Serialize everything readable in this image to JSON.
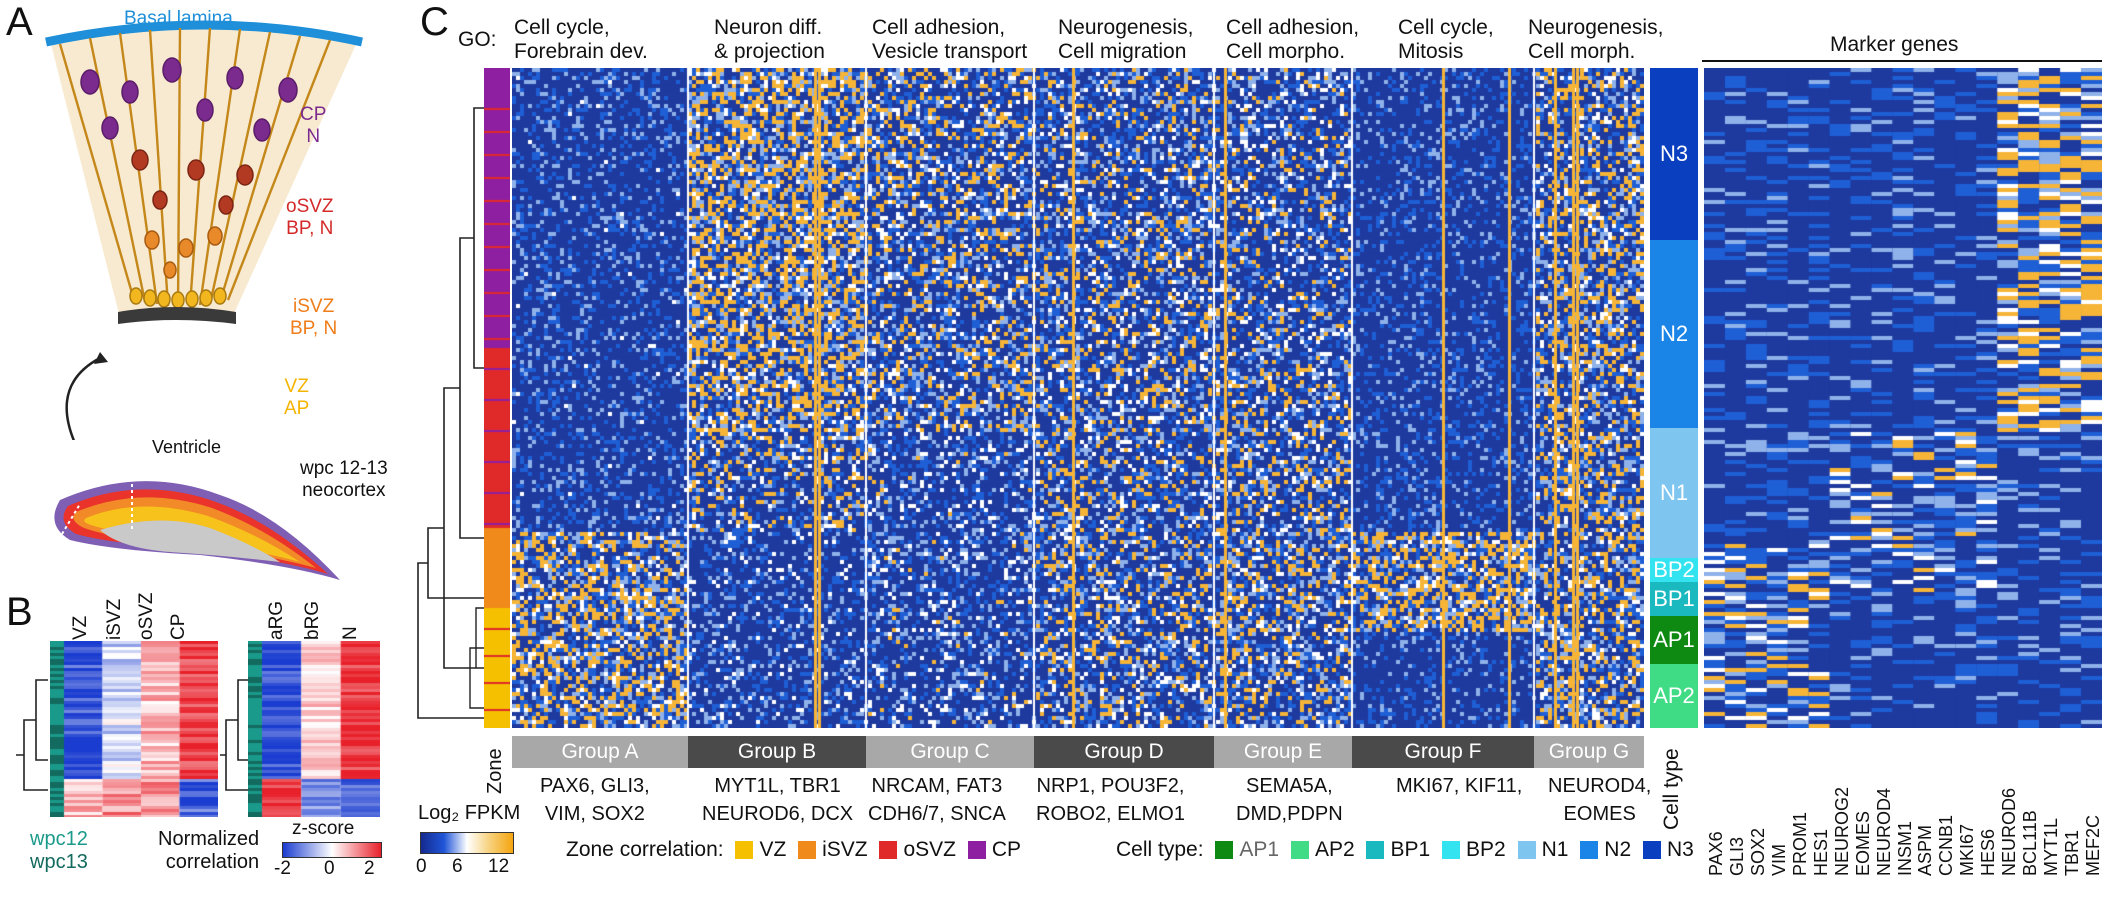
{
  "panels": {
    "a": "A",
    "b": "B",
    "c": "C"
  },
  "panel_a": {
    "basal_lamina": "Basal lamina",
    "zones": [
      {
        "label": "CP\nN",
        "color": "#7b2a8e"
      },
      {
        "label": "oSVZ\nBP, N",
        "color": "#d42a2a"
      },
      {
        "label": "iSVZ\nBP, N",
        "color": "#ef7d1a"
      },
      {
        "label": "VZ\nAP",
        "color": "#f5b400"
      }
    ],
    "ventricle": "Ventricle",
    "stage": "wpc 12-13\nneocortex"
  },
  "panel_b": {
    "columns_left": [
      "VZ",
      "iSVZ",
      "oSVZ",
      "CP"
    ],
    "columns_right": [
      "aRG",
      "bRG",
      "N"
    ],
    "legend_wpc12": "wpc12",
    "legend_wpc13": "wpc13",
    "normalized_correlation": "Normalized\ncorrelation",
    "zscore_title": "z-score",
    "zscore_ticks": [
      "-2",
      "0",
      "2"
    ]
  },
  "panel_c": {
    "go_prefix": "GO:",
    "go_terms": [
      "Cell cycle,\nForebrain dev.",
      "Neuron diff.\n& projection",
      "Cell adhesion,\nVesicle transport",
      "Neurogenesis,\nCell migration",
      "Cell adhesion,\nCell morpho.",
      "Cell cycle,\nMitosis",
      "Neurogenesis,\nCell morph."
    ],
    "groups": [
      {
        "label": "Group A",
        "genes": "PAX6, GLI3,\nVIM, SOX2"
      },
      {
        "label": "Group B",
        "genes": "MYT1L, TBR1\nNEUROD6, DCX"
      },
      {
        "label": "Group C",
        "genes": "NRCAM, FAT3\nCDH6/7, SNCA"
      },
      {
        "label": "Group D",
        "genes": "NRP1, POU3F2,\nROBO2, ELMO1"
      },
      {
        "label": "Group E",
        "genes": "SEMA5A,\nDMD,PDPN"
      },
      {
        "label": "Group F",
        "genes": "MKI67, KIF11,"
      },
      {
        "label": "Group G",
        "genes": "NEUROD4,\nEOMES"
      }
    ],
    "zone_label": "Zone",
    "cell_type_label": "Cell type",
    "cell_types": [
      {
        "label": "N3",
        "color": "#0a3fbf"
      },
      {
        "label": "N2",
        "color": "#1a85e6"
      },
      {
        "label": "N1",
        "color": "#7ec6ef"
      },
      {
        "label": "BP2",
        "color": "#33e3f0"
      },
      {
        "label": "BP1",
        "color": "#1ab9bf"
      },
      {
        "label": "AP1",
        "color": "#0e8a13"
      },
      {
        "label": "AP2",
        "color": "#3fdc85"
      }
    ],
    "marker_title": "Marker genes",
    "marker_genes": [
      "PAX6",
      "GLI3",
      "SOX2",
      "VIM",
      "PROM1",
      "HES1",
      "NEUROG2",
      "EOMES",
      "NEUROD4",
      "INSM1",
      "ASPM",
      "CCNB1",
      "MKI67",
      "HES6",
      "NEUROD6",
      "BCL11B",
      "MYT1L",
      "TBR1",
      "MEF2C"
    ],
    "fpkm_title": "Log₂ FPKM",
    "fpkm_ticks": [
      "0",
      "6",
      "12"
    ],
    "zone_correlation_title": "Zone correlation:",
    "zone_correlation": [
      {
        "label": "VZ",
        "color": "#f5c000"
      },
      {
        "label": "iSVZ",
        "color": "#f08a1a"
      },
      {
        "label": "oSVZ",
        "color": "#e02a2a"
      },
      {
        "label": "CP",
        "color": "#8e1fa0"
      }
    ],
    "cell_type_legend_title": "Cell type:",
    "cell_type_legend": [
      {
        "label": "AP1",
        "color": "#0e8a13"
      },
      {
        "label": "AP2",
        "color": "#3fdc85"
      },
      {
        "label": "BP1",
        "color": "#1ab9bf"
      },
      {
        "label": "BP2",
        "color": "#33e3f0"
      },
      {
        "label": "N1",
        "color": "#7ec6ef"
      },
      {
        "label": "N2",
        "color": "#1a85e6"
      },
      {
        "label": "N3",
        "color": "#0a3fbf"
      }
    ]
  }
}
